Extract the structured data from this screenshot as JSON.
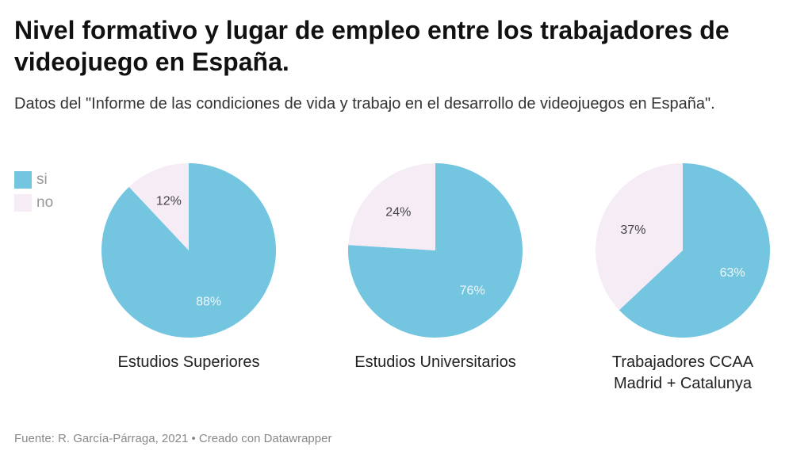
{
  "header": {
    "title": "Nivel formativo y lugar de empleo entre los trabajadores de videojuego en España.",
    "subtitle": "Datos del \"Informe de las condiciones de vida y trabajo en el desarrollo de videojuegos en España\"."
  },
  "legend": [
    {
      "label": "si",
      "color": "#74c5e0"
    },
    {
      "label": "no",
      "color": "#f5ecf5"
    }
  ],
  "footer": "Fuente: R. García-Párraga, 2021 • Creado con Datawrapper",
  "chart_data": {
    "type": "pie",
    "series_names": [
      "si",
      "no"
    ],
    "colors": {
      "si": "#74c5e0",
      "no": "#f5ecf5"
    },
    "label_colors": {
      "si": "#eef8fb",
      "no": "#444444"
    },
    "legend_position": "top-left",
    "pies": [
      {
        "label": [
          "Estudios Superiores"
        ],
        "values": {
          "si": 88,
          "no": 12
        },
        "value_labels": {
          "si": "88%",
          "no": "12%"
        }
      },
      {
        "label": [
          "Estudios Universitarios"
        ],
        "values": {
          "si": 76,
          "no": 24
        },
        "value_labels": {
          "si": "76%",
          "no": "24%"
        }
      },
      {
        "label": [
          "Trabajadores CCAA",
          "Madrid + Catalunya"
        ],
        "values": {
          "si": 63,
          "no": 37
        },
        "value_labels": {
          "si": "63%",
          "no": "37%"
        }
      }
    ]
  }
}
